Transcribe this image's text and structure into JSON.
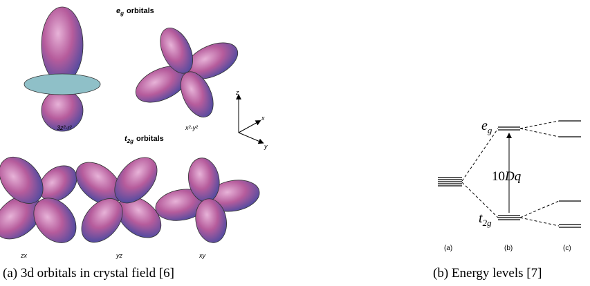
{
  "figure_a": {
    "eg_title": {
      "symbol": "e",
      "subscript": "g",
      "text": "orbitals"
    },
    "eg_labels": [
      "3z²-r²",
      "x²-y²"
    ],
    "t2g_title": {
      "symbol": "t",
      "subscript": "2g",
      "text": "orbitals"
    },
    "t2g_labels": [
      "zx",
      "yz",
      "xy"
    ],
    "axes": [
      "z",
      "x",
      "y"
    ],
    "caption": "(a) 3d orbitals in crystal field [6]"
  },
  "figure_b": {
    "eg": {
      "symbol": "e",
      "subscript": "g"
    },
    "gap": {
      "number": "10",
      "symbol": "Dq"
    },
    "t2g": {
      "symbol": "t",
      "subscript": "2g"
    },
    "panels": [
      "(a)",
      "(b)",
      "(c)"
    ],
    "caption": "(b) Energy levels [7]"
  }
}
